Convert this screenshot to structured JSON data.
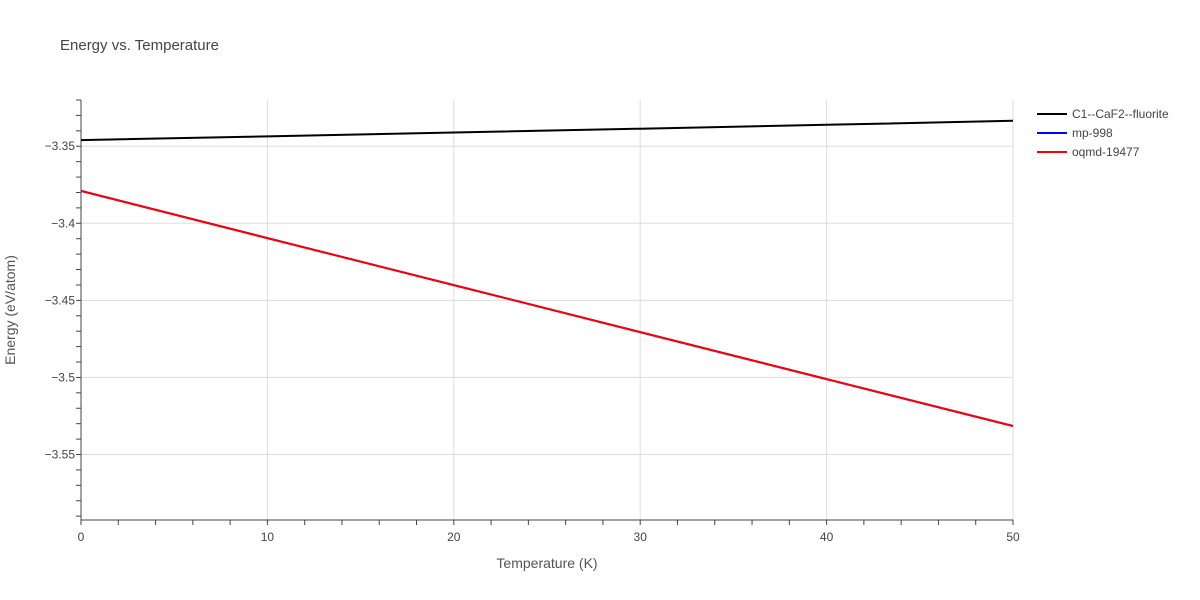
{
  "chart_data": {
    "type": "line",
    "title": "Energy vs. Temperature",
    "xlabel": "Temperature (K)",
    "ylabel": "Energy (eV/atom)",
    "xlim": [
      0,
      50
    ],
    "ylim": [
      -3.5925,
      -3.32
    ],
    "x_ticks": [
      0,
      10,
      20,
      30,
      40,
      50
    ],
    "x_tick_labels": [
      "0",
      "10",
      "20",
      "30",
      "40",
      "50"
    ],
    "y_ticks": [
      -3.35,
      -3.4,
      -3.45,
      -3.5,
      -3.55
    ],
    "y_tick_labels": [
      "−3.35",
      "−3.4",
      "−3.45",
      "−3.5",
      "−3.55"
    ],
    "grid": true,
    "legend_position": "top-right",
    "series": [
      {
        "name": "C1--CaF2--fluorite",
        "color": "#000000",
        "x": [
          0,
          10,
          20,
          30,
          40,
          50
        ],
        "y": [
          -3.346,
          -3.3436,
          -3.3411,
          -3.3386,
          -3.3361,
          -3.3335
        ]
      },
      {
        "name": "mp-998",
        "color": "#0000ff",
        "x": [
          0,
          10,
          20,
          30,
          40,
          50
        ],
        "y": [
          -3.379,
          -3.4096,
          -3.4401,
          -3.4706,
          -3.5011,
          -3.5315
        ]
      },
      {
        "name": "oqmd-19477",
        "color": "#ff0000",
        "x": [
          0,
          10,
          20,
          30,
          40,
          50
        ],
        "y": [
          -3.379,
          -3.4096,
          -3.4401,
          -3.4706,
          -3.5011,
          -3.5315
        ]
      }
    ]
  }
}
